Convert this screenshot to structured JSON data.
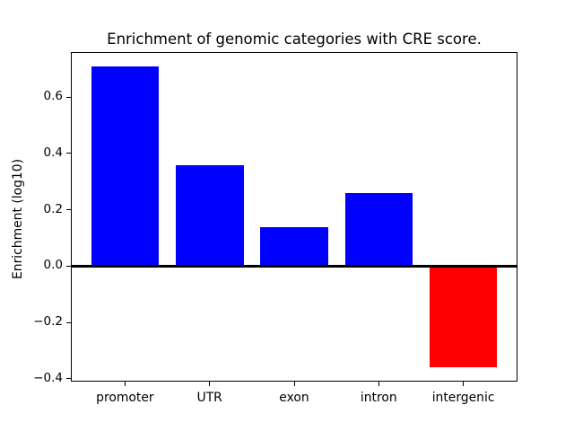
{
  "chart_data": {
    "type": "bar",
    "title": "Enrichment of genomic categories with CRE score.",
    "xlabel": "",
    "ylabel": "Enrichment (log10)",
    "categories": [
      "promoter",
      "UTR",
      "exon",
      "intron",
      "intergenic"
    ],
    "values": [
      0.71,
      0.36,
      0.14,
      0.26,
      -0.36
    ],
    "bar_colors": [
      "#0000ff",
      "#0000ff",
      "#0000ff",
      "#0000ff",
      "#ff0000"
    ],
    "positive_color": "#0000ff",
    "negative_color": "#ff0000",
    "ylim": [
      -0.41,
      0.76
    ],
    "yticks": [
      0.6,
      0.4,
      0.2,
      0.0,
      -0.2,
      -0.4
    ],
    "ytick_labels": [
      "0.6",
      "0.4",
      "0.2",
      "0.0",
      "−0.2",
      "−0.4"
    ],
    "zero_line": true,
    "grid": false,
    "legend": null,
    "bar_width_fraction": 0.8,
    "axis_color": "#000000",
    "background_color": "#ffffff"
  }
}
